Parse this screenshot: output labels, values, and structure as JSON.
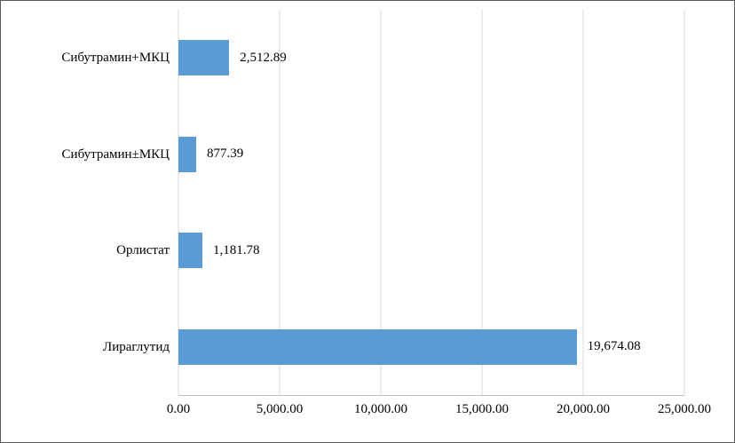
{
  "colors": {
    "bar": "#5B9BD5",
    "gridline": "#D9D9D9",
    "axis": "#BFBFBF",
    "border": "#595959",
    "text": "#000000"
  },
  "chart_data": {
    "type": "bar",
    "orientation": "horizontal",
    "title": "",
    "xlabel": "",
    "ylabel": "",
    "categories": [
      "Сибутрамин+МКЦ",
      "Сибутрамин±МКЦ",
      "Орлистат",
      "Лираглутид"
    ],
    "values": [
      2512.89,
      877.39,
      1181.78,
      19674.08
    ],
    "value_labels": [
      "2,512.89",
      "877.39",
      "1,181.78",
      "19,674.08"
    ],
    "xlim": [
      0,
      25000
    ],
    "x_ticks": [
      0,
      5000,
      10000,
      15000,
      20000,
      25000
    ],
    "x_tick_labels": [
      "0.00",
      "5,000.00",
      "10,000.00",
      "15,000.00",
      "20,000.00",
      "25,000.00"
    ],
    "grid": true,
    "legend": false
  }
}
